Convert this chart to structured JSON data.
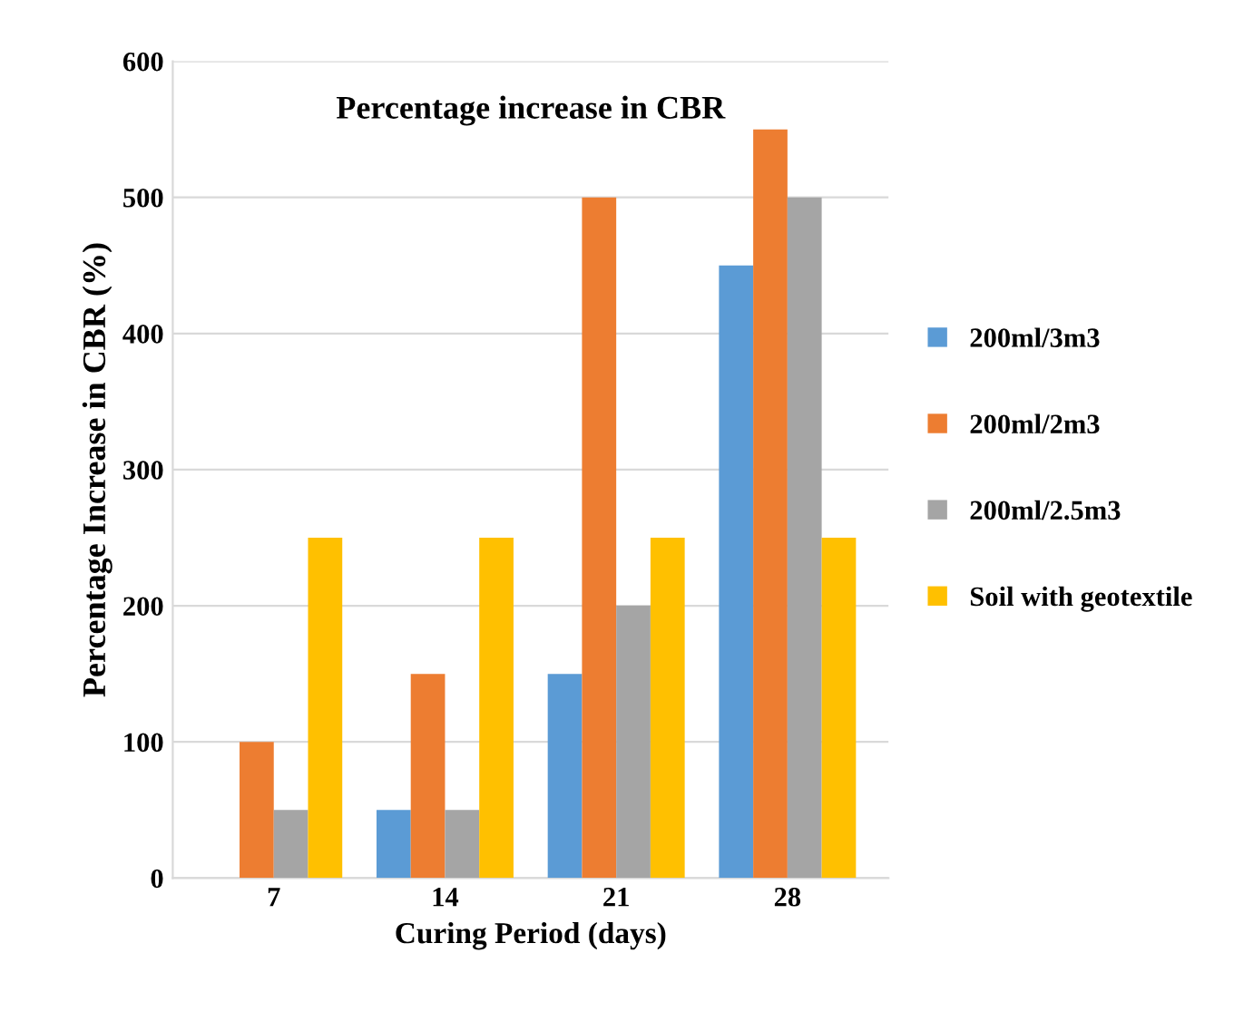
{
  "chart_data": {
    "type": "bar",
    "title": "Percentage increase in CBR",
    "xlabel": "Curing Period (days)",
    "ylabel": "Percentage Increase in CBR (%)",
    "categories": [
      "7",
      "14",
      "21",
      "28"
    ],
    "series": [
      {
        "name": "200ml/3m3",
        "color": "#5b9bd5",
        "values": [
          0,
          50,
          150,
          450
        ]
      },
      {
        "name": "200ml/2m3",
        "color": "#ed7d31",
        "values": [
          100,
          150,
          500,
          550
        ]
      },
      {
        "name": "200ml/2.5m3",
        "color": "#a5a5a5",
        "values": [
          50,
          50,
          200,
          500
        ]
      },
      {
        "name": "Soil with geotextile",
        "color": "#ffc000",
        "values": [
          250,
          250,
          250,
          250
        ]
      }
    ],
    "ylim": [
      0,
      600
    ],
    "yticks": [
      0,
      100,
      200,
      300,
      400,
      500,
      600
    ],
    "grid": "y",
    "legend": "right"
  }
}
